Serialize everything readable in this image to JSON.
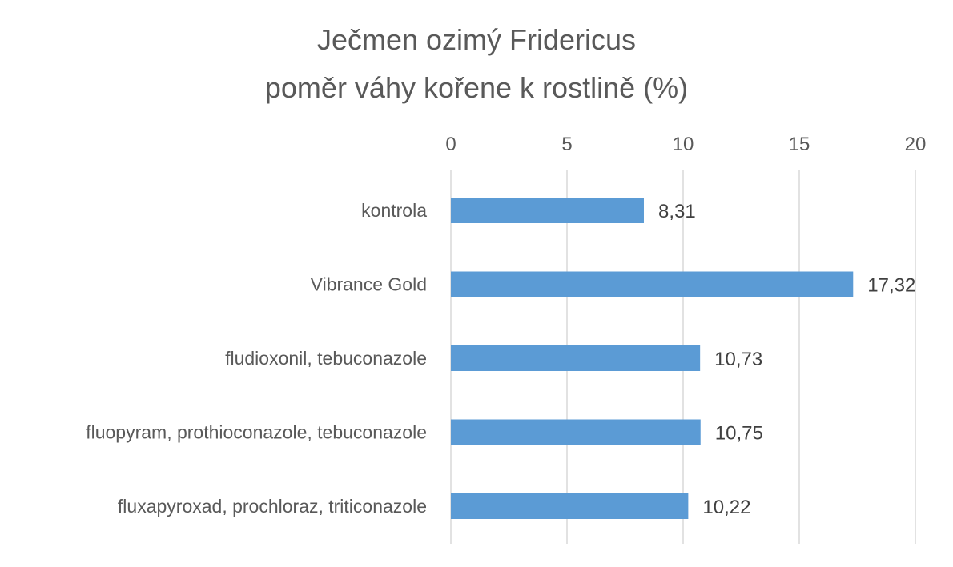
{
  "chart_data": {
    "type": "bar",
    "orientation": "horizontal",
    "title": [
      "Ječmen ozimý Fridericus",
      "poměr váhy kořene k rostlině (%)"
    ],
    "categories": [
      "kontrola",
      "Vibrance Gold",
      "fludioxonil, tebuconazole",
      "fluopyram, prothioconazole, tebuconazole",
      "fluxapyroxad, prochloraz, triticonazole"
    ],
    "values": [
      8.31,
      17.32,
      10.73,
      10.75,
      10.22
    ],
    "data_labels": [
      "8,31",
      "17,32",
      "10,73",
      "10,75",
      "10,22"
    ],
    "xlim": [
      0,
      20
    ],
    "x_ticks": [
      0,
      5,
      10,
      15,
      20
    ],
    "x_tick_labels": [
      "0",
      "5",
      "10",
      "15",
      "20"
    ],
    "x_axis_position": "top",
    "grid": true,
    "legend": false,
    "bar_color": "#5b9bd5"
  }
}
